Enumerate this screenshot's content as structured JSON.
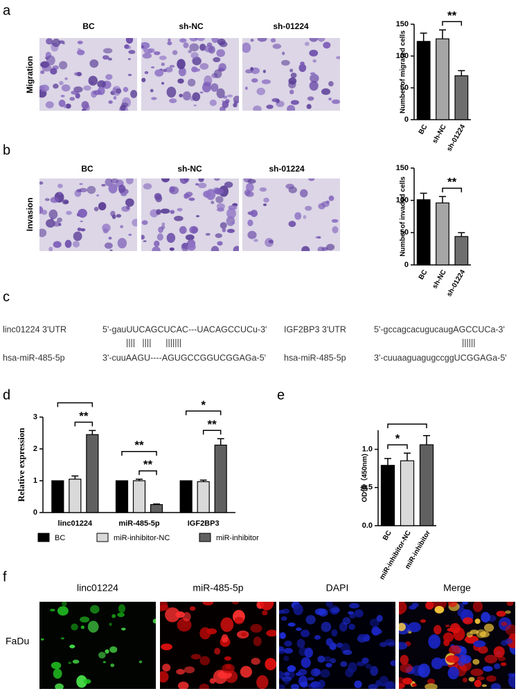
{
  "panel_labels": [
    "a",
    "b",
    "c",
    "d",
    "e",
    "f"
  ],
  "migration": {
    "row_label": "Migration",
    "columns": [
      "BC",
      "sh-NC",
      "sh-01224"
    ]
  },
  "invasion": {
    "row_label": "Invasion",
    "columns": [
      "BC",
      "sh-NC",
      "sh-01224"
    ]
  },
  "alignment": [
    {
      "target": "linc01224 3'UTR",
      "target_seq": "5'-gauUUCAGCUCAC---UACAGCCUCu-3'",
      "pairing": "||||   ||||      |||||||",
      "mirna": "hsa-miR-485-5p",
      "mirna_seq": "3'-cuuAAGU----AGUGCCGGUCGGAGa-5'"
    },
    {
      "target": "IGF2BP3 3'UTR",
      "target_seq": "5'-gccagcacugucaugAGCCUCa-3'",
      "pairing": "||||||",
      "mirna": "hsa-miR-485-5p",
      "mirna_seq": "3'-cuuaaguagugccggUCGGAGa-5'"
    }
  ],
  "fluorescence": {
    "row_label": "FaDu",
    "columns": [
      "linc01224",
      "miR-485-5p",
      "DAPI",
      "Merge"
    ]
  },
  "chart_data": [
    {
      "type": "bar",
      "ylabel": "Number of migrated cells",
      "categories": [
        "BC",
        "sh-NC",
        "sh-01224"
      ],
      "values": [
        123,
        127,
        69
      ],
      "errors": [
        13,
        14,
        8
      ],
      "colors": [
        "#000000",
        "#a6a6a6",
        "#6e6e6e"
      ],
      "ylim": [
        0,
        150
      ],
      "yticks": [
        0,
        50,
        100,
        150
      ],
      "annotations": [
        {
          "text": "**",
          "between": [
            "sh-NC",
            "sh-01224"
          ]
        }
      ]
    },
    {
      "type": "bar",
      "ylabel": "Number of invaded cells",
      "categories": [
        "BC",
        "sh-NC",
        "sh-01224"
      ],
      "values": [
        101,
        96,
        44
      ],
      "errors": [
        10,
        10,
        6
      ],
      "colors": [
        "#000000",
        "#a6a6a6",
        "#6e6e6e"
      ],
      "ylim": [
        0,
        150
      ],
      "yticks": [
        0,
        50,
        100,
        150
      ],
      "annotations": [
        {
          "text": "**",
          "between": [
            "sh-NC",
            "sh-01224"
          ]
        }
      ]
    },
    {
      "type": "grouped_bar",
      "ylabel": "Relative expression",
      "categories": [
        "linc01224",
        "miR-485-5p",
        "IGF2BP3"
      ],
      "series": [
        {
          "name": "BC",
          "color": "#000000",
          "values": [
            1,
            1,
            1
          ],
          "errors": [
            0,
            0,
            0
          ]
        },
        {
          "name": "miR-inhibitor-NC",
          "color": "#d9d9d9",
          "values": [
            1.05,
            1.0,
            0.97
          ],
          "errors": [
            0.1,
            0.05,
            0.05
          ]
        },
        {
          "name": "miR-inhibitor",
          "color": "#606060",
          "values": [
            2.45,
            0.25,
            2.12
          ],
          "errors": [
            0.13,
            0.02,
            0.2
          ]
        }
      ],
      "ylim": [
        0,
        3
      ],
      "yticks": [
        0,
        1,
        2,
        3
      ],
      "annotations": [
        {
          "category": "linc01224",
          "text": "**",
          "between": [
            "miR-inhibitor-NC",
            "miR-inhibitor"
          ]
        },
        {
          "category": "linc01224",
          "between": [
            "BC",
            "miR-inhibitor"
          ]
        },
        {
          "category": "miR-485-5p",
          "text": "**",
          "between": [
            "miR-inhibitor-NC",
            "miR-inhibitor"
          ]
        },
        {
          "category": "miR-485-5p",
          "text": "**",
          "between": [
            "BC",
            "miR-inhibitor"
          ]
        },
        {
          "category": "IGF2BP3",
          "text": "**",
          "between": [
            "miR-inhibitor-NC",
            "miR-inhibitor"
          ]
        },
        {
          "category": "IGF2BP3",
          "text": "*",
          "between": [
            "BC",
            "miR-inhibitor"
          ]
        }
      ]
    },
    {
      "type": "bar",
      "ylabel": "OD值（450nm)",
      "categories": [
        "BC",
        "miR-inhibitor-NC",
        "miR-inhibitor"
      ],
      "values": [
        0.79,
        0.85,
        1.06
      ],
      "errors": [
        0.09,
        0.1,
        0.12
      ],
      "colors": [
        "#000000",
        "#d9d9d9",
        "#606060"
      ],
      "ylim": [
        0,
        1.25
      ],
      "yticks": [
        {
          "value": 0,
          "label": "0.0"
        },
        {
          "value": 0.5,
          "label": "0.5"
        },
        {
          "value": 1,
          "label": "1.0"
        }
      ],
      "annotations": [
        {
          "text": "*",
          "between": [
            "BC",
            "miR-inhibitor-NC"
          ]
        },
        {
          "between": [
            "BC",
            "miR-inhibitor"
          ]
        }
      ]
    }
  ]
}
